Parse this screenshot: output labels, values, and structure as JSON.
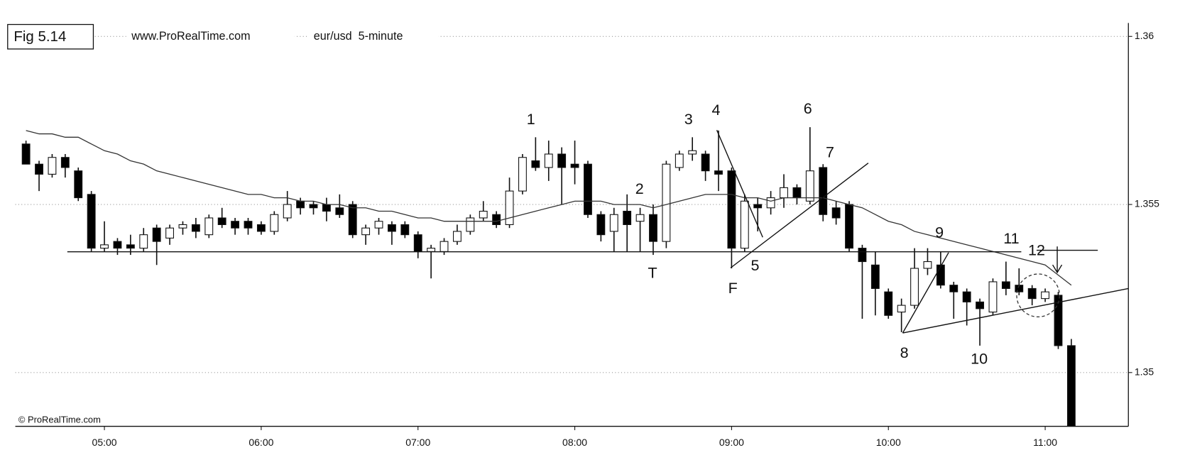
{
  "chart_data": {
    "type": "candlestick",
    "title": "Fig 5.14",
    "source": "www.ProRealTime.com",
    "subtitle": "eur/usd  5-minute",
    "copyright": "© ProRealTime.com",
    "categories": [
      null,
      null,
      null,
      null,
      null,
      null,
      "05:00",
      null,
      null,
      null,
      null,
      null,
      null,
      null,
      null,
      null,
      null,
      null,
      "06:00",
      null,
      null,
      null,
      null,
      null,
      null,
      null,
      null,
      null,
      null,
      null,
      "07:00",
      null,
      null,
      null,
      null,
      null,
      null,
      null,
      null,
      null,
      null,
      null,
      "08:00",
      null,
      null,
      null,
      null,
      null,
      null,
      null,
      null,
      null,
      null,
      null,
      "09:00",
      null,
      null,
      null,
      null,
      null,
      null,
      null,
      null,
      null,
      null,
      null,
      "10:00",
      null,
      null,
      null,
      null,
      null,
      null,
      null,
      null,
      null,
      null,
      null,
      "11:00",
      null,
      null
    ],
    "open": [
      1.3568,
      1.3562,
      1.3559,
      1.3564,
      1.356,
      1.3553,
      1.3537,
      1.3539,
      1.3538,
      1.3537,
      1.3543,
      1.354,
      1.3543,
      1.3544,
      1.3541,
      1.3546,
      1.3545,
      1.3545,
      1.3544,
      1.3542,
      1.3546,
      1.3551,
      1.355,
      1.355,
      1.3549,
      1.355,
      1.3541,
      1.3543,
      1.3544,
      1.3544,
      1.3541,
      1.3536,
      1.3536,
      1.3539,
      1.3542,
      1.3546,
      1.3547,
      1.3544,
      1.3554,
      1.3563,
      1.3561,
      1.3565,
      1.3562,
      1.3562,
      1.3547,
      1.3542,
      1.3548,
      1.3545,
      1.3547,
      1.3539,
      1.3561,
      1.3565,
      1.3565,
      1.356,
      1.356,
      1.3537,
      1.355,
      1.3549,
      1.3552,
      1.3555,
      1.3551,
      1.3561,
      1.3549,
      1.355,
      1.3537,
      1.3532,
      1.3524,
      1.3518,
      1.352,
      1.3531,
      1.3532,
      1.3526,
      1.3524,
      1.3521,
      1.3518,
      1.3527,
      1.3526,
      1.3525,
      1.3522,
      1.3523,
      1.3508
    ],
    "high": [
      1.3569,
      1.3563,
      1.3565,
      1.3565,
      1.3561,
      1.3554,
      1.3545,
      1.354,
      1.3541,
      1.3543,
      1.3544,
      1.3544,
      1.3545,
      1.3546,
      1.3547,
      1.3549,
      1.3546,
      1.3546,
      1.3545,
      1.3548,
      1.3554,
      1.3552,
      1.3551,
      1.3552,
      1.3553,
      1.3551,
      1.3544,
      1.3546,
      1.3545,
      1.3545,
      1.3542,
      1.3538,
      1.354,
      1.3544,
      1.3547,
      1.3551,
      1.3548,
      1.3558,
      1.3565,
      1.357,
      1.3569,
      1.3567,
      1.3569,
      1.3563,
      1.3548,
      1.3549,
      1.3553,
      1.3549,
      1.355,
      1.3563,
      1.3566,
      1.357,
      1.3566,
      1.3572,
      1.3561,
      1.3553,
      1.3552,
      1.3554,
      1.3559,
      1.3556,
      1.3573,
      1.3562,
      1.3551,
      1.3551,
      1.3538,
      1.3536,
      1.3525,
      1.3522,
      1.3537,
      1.3537,
      1.3536,
      1.3527,
      1.3525,
      1.3522,
      1.3528,
      1.3533,
      1.3531,
      1.3526,
      1.3525,
      1.3524,
      1.351
    ],
    "low": [
      1.3562,
      1.3554,
      1.3558,
      1.3558,
      1.3551,
      1.3536,
      1.3536,
      1.3535,
      1.3535,
      1.3536,
      1.3532,
      1.3538,
      1.3541,
      1.354,
      1.354,
      1.3543,
      1.3541,
      1.3541,
      1.3541,
      1.3541,
      1.3545,
      1.3547,
      1.3547,
      1.3545,
      1.3546,
      1.354,
      1.3538,
      1.3541,
      1.3538,
      1.354,
      1.3534,
      1.3528,
      1.3535,
      1.3538,
      1.3541,
      1.3545,
      1.3543,
      1.3543,
      1.3553,
      1.356,
      1.3557,
      1.355,
      1.3556,
      1.3546,
      1.3539,
      1.3536,
      1.3536,
      1.3536,
      1.3535,
      1.3537,
      1.356,
      1.3563,
      1.3557,
      1.3554,
      1.3531,
      1.3536,
      1.3542,
      1.3547,
      1.3549,
      1.355,
      1.355,
      1.3545,
      1.3544,
      1.3536,
      1.3516,
      1.3517,
      1.3516,
      1.3512,
      1.3519,
      1.3529,
      1.3525,
      1.3516,
      1.3514,
      1.3508,
      1.3517,
      1.3523,
      1.3523,
      1.352,
      1.3521,
      1.3507,
      1.348
    ],
    "close": [
      1.3562,
      1.3559,
      1.3564,
      1.3561,
      1.3552,
      1.3537,
      1.3538,
      1.3537,
      1.3537,
      1.3541,
      1.3539,
      1.3543,
      1.3544,
      1.3542,
      1.3546,
      1.3544,
      1.3543,
      1.3543,
      1.3542,
      1.3547,
      1.355,
      1.3549,
      1.3549,
      1.3548,
      1.3547,
      1.3541,
      1.3543,
      1.3545,
      1.3542,
      1.3541,
      1.3536,
      1.3537,
      1.3539,
      1.3542,
      1.3546,
      1.3548,
      1.3544,
      1.3554,
      1.3564,
      1.3561,
      1.3565,
      1.3561,
      1.3561,
      1.3547,
      1.3541,
      1.3547,
      1.3544,
      1.3547,
      1.3539,
      1.3562,
      1.3565,
      1.3566,
      1.356,
      1.3559,
      1.3537,
      1.3551,
      1.3549,
      1.3552,
      1.3555,
      1.3552,
      1.356,
      1.3547,
      1.3546,
      1.3537,
      1.3533,
      1.3525,
      1.3517,
      1.352,
      1.3531,
      1.3533,
      1.3526,
      1.3524,
      1.3521,
      1.3519,
      1.3527,
      1.3525,
      1.3524,
      1.3522,
      1.3524,
      1.3508,
      1.3484
    ],
    "ma": {
      "color": "#333333",
      "values": [
        1.3572,
        1.3571,
        1.3571,
        1.357,
        1.357,
        1.3568,
        1.3566,
        1.3565,
        1.3563,
        1.3562,
        1.356,
        1.3559,
        1.3558,
        1.3557,
        1.3556,
        1.3555,
        1.3554,
        1.3553,
        1.3553,
        1.3552,
        1.3552,
        1.3551,
        1.3551,
        1.355,
        1.355,
        1.3549,
        1.3549,
        1.3548,
        1.3548,
        1.3547,
        1.3546,
        1.3546,
        1.3545,
        1.3545,
        1.3545,
        1.3545,
        1.3545,
        1.3546,
        1.3547,
        1.3548,
        1.3549,
        1.355,
        1.3551,
        1.3551,
        1.3551,
        1.355,
        1.355,
        1.355,
        1.3549,
        1.355,
        1.3551,
        1.3552,
        1.3553,
        1.3553,
        1.3553,
        1.3552,
        1.3552,
        1.3551,
        1.3552,
        1.3552,
        1.3552,
        1.3552,
        1.3551,
        1.355,
        1.3549,
        1.3547,
        1.3545,
        1.3544,
        1.3542,
        1.3541,
        1.354,
        1.3539,
        1.3538,
        1.3537,
        1.3536,
        1.3535,
        1.3534,
        1.3533,
        1.3532,
        1.3529,
        1.3526
      ]
    },
    "up_color": "#ffffff",
    "down_color": "#000000",
    "ylim": [
      1.3484,
      1.3604
    ],
    "yticks": [
      1.35,
      1.355,
      1.36
    ],
    "grid": true,
    "annotations": [
      "1",
      "2",
      "3",
      "4",
      "5",
      "6",
      "7",
      "8",
      "9",
      "10",
      "11",
      "12",
      "T",
      "F"
    ]
  }
}
